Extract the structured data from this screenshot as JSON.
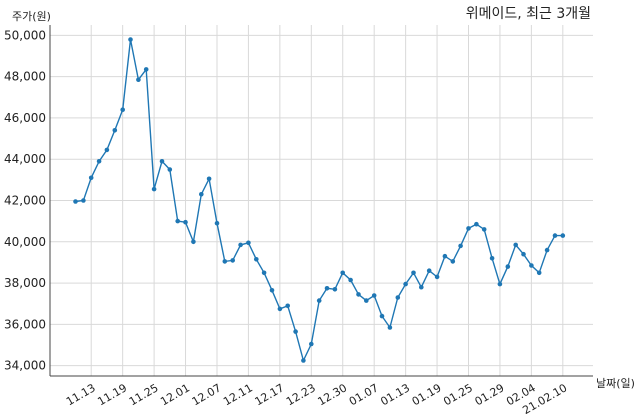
{
  "chart_data": {
    "type": "line",
    "title": "위메이드, 최근 3개월",
    "ylabel": "주가(원)",
    "xlabel": "날짜(일)",
    "ylim": [
      33500,
      50500
    ],
    "yticks": [
      34000,
      36000,
      38000,
      40000,
      42000,
      44000,
      46000,
      48000,
      50000
    ],
    "ytick_labels": [
      "34,000",
      "36,000",
      "38,000",
      "40,000",
      "42,000",
      "44,000",
      "46,000",
      "48,000",
      "50,000"
    ],
    "xtick_labels": [
      "11.13",
      "11.19",
      "11.25",
      "12.01",
      "12.07",
      "12.11",
      "12.17",
      "12.23",
      "12.30",
      "01.07",
      "01.13",
      "01.19",
      "01.25",
      "01.29",
      "02.04",
      "21.02.10"
    ],
    "xtick_positions": [
      2,
      6,
      10,
      14,
      18,
      22,
      26,
      30,
      34,
      38,
      42,
      46,
      50,
      54,
      58,
      62
    ],
    "grid": true,
    "series": [
      {
        "color": "#1f77b4",
        "values": [
          41950,
          42000,
          43100,
          43900,
          44450,
          45400,
          46400,
          49800,
          47850,
          48350,
          42550,
          43900,
          43500,
          41000,
          40950,
          40000,
          42300,
          43050,
          40900,
          39050,
          39100,
          39850,
          39950,
          39150,
          38500,
          37650,
          36750,
          36900,
          35650,
          34250,
          35050,
          37150,
          37750,
          37700,
          38500,
          38150,
          37450,
          37150,
          37400,
          36400,
          35850,
          37300,
          37950,
          38500,
          37800,
          38600,
          38300,
          39300,
          39050,
          39800,
          40650,
          40850,
          40600,
          39200,
          37950,
          38800,
          39850,
          39400,
          38850,
          38500,
          39600,
          40300,
          40300
        ]
      }
    ]
  }
}
